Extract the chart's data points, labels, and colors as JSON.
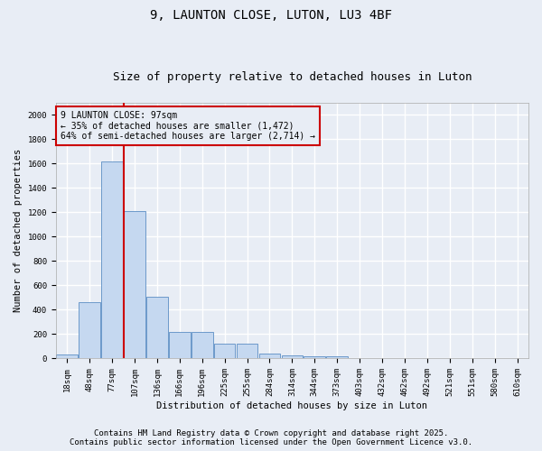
{
  "title1": "9, LAUNTON CLOSE, LUTON, LU3 4BF",
  "title2": "Size of property relative to detached houses in Luton",
  "xlabel": "Distribution of detached houses by size in Luton",
  "ylabel": "Number of detached properties",
  "categories": [
    "18sqm",
    "48sqm",
    "77sqm",
    "107sqm",
    "136sqm",
    "166sqm",
    "196sqm",
    "225sqm",
    "255sqm",
    "284sqm",
    "314sqm",
    "344sqm",
    "373sqm",
    "403sqm",
    "432sqm",
    "462sqm",
    "492sqm",
    "521sqm",
    "551sqm",
    "580sqm",
    "610sqm"
  ],
  "values": [
    30,
    460,
    1620,
    1210,
    510,
    215,
    215,
    125,
    125,
    40,
    25,
    20,
    15,
    0,
    0,
    0,
    0,
    0,
    0,
    0,
    0
  ],
  "bar_color": "#c5d8f0",
  "bar_edge_color": "#5b8ec4",
  "bg_color": "#e8edf5",
  "grid_color": "#ffffff",
  "vline_x": 2.5,
  "vline_color": "#cc0000",
  "annotation_line1": "9 LAUNTON CLOSE: 97sqm",
  "annotation_line2": "← 35% of detached houses are smaller (1,472)",
  "annotation_line3": "64% of semi-detached houses are larger (2,714) →",
  "annotation_box_color": "#cc0000",
  "ylim": [
    0,
    2100
  ],
  "yticks": [
    0,
    200,
    400,
    600,
    800,
    1000,
    1200,
    1400,
    1600,
    1800,
    2000
  ],
  "footer1": "Contains HM Land Registry data © Crown copyright and database right 2025.",
  "footer2": "Contains public sector information licensed under the Open Government Licence v3.0.",
  "title_fontsize": 10,
  "subtitle_fontsize": 9,
  "axis_label_fontsize": 7.5,
  "tick_fontsize": 6.5,
  "annotation_fontsize": 7,
  "footer_fontsize": 6.5
}
